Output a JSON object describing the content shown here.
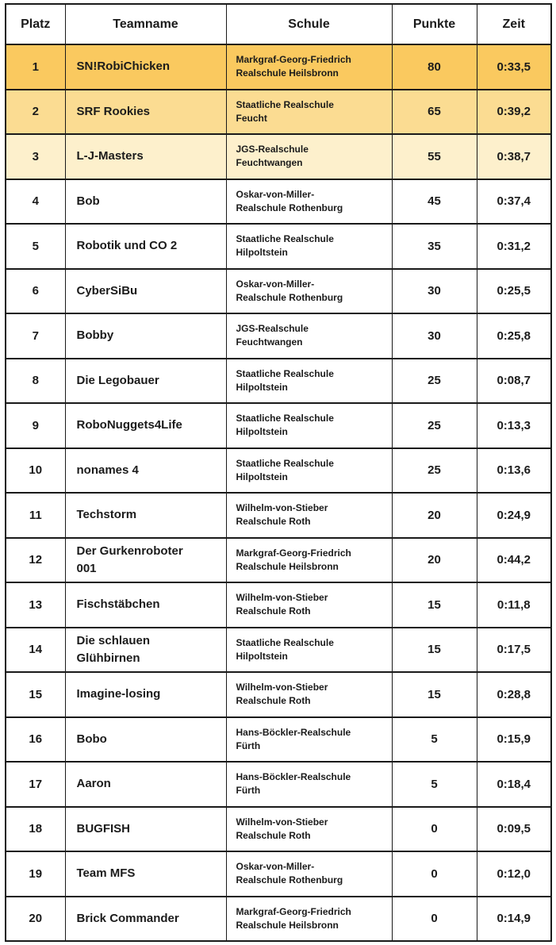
{
  "table": {
    "headers": [
      "Platz",
      "Teamname",
      "Schule",
      "Punkte",
      "Zeit"
    ],
    "rows": [
      {
        "platz": "1",
        "teamname": "SN!RobiChicken",
        "schule": "Markgraf-Georg-Friedrich\nRealschule Heilsbronn",
        "punkte": "80",
        "zeit": "0:33,5",
        "highlight": 1
      },
      {
        "platz": "2",
        "teamname": "SRF Rookies",
        "schule": "Staatliche Realschule\nFeucht",
        "punkte": "65",
        "zeit": "0:39,2",
        "highlight": 2
      },
      {
        "platz": "3",
        "teamname": "L-J-Masters",
        "schule": "JGS-Realschule\nFeuchtwangen",
        "punkte": "55",
        "zeit": "0:38,7",
        "highlight": 3
      },
      {
        "platz": "4",
        "teamname": "Bob",
        "schule": "Oskar-von-Miller-\nRealschule Rothenburg",
        "punkte": "45",
        "zeit": "0:37,4",
        "highlight": 0
      },
      {
        "platz": "5",
        "teamname": "Robotik und CO 2",
        "schule": "Staatliche Realschule\nHilpoltstein",
        "punkte": "35",
        "zeit": "0:31,2",
        "highlight": 0
      },
      {
        "platz": "6",
        "teamname": "CyberSiBu",
        "schule": "Oskar-von-Miller-\nRealschule Rothenburg",
        "punkte": "30",
        "zeit": "0:25,5",
        "highlight": 0
      },
      {
        "platz": "7",
        "teamname": "Bobby",
        "schule": "JGS-Realschule\nFeuchtwangen",
        "punkte": "30",
        "zeit": "0:25,8",
        "highlight": 0
      },
      {
        "platz": "8",
        "teamname": "Die Legobauer",
        "schule": "Staatliche Realschule\nHilpoltstein",
        "punkte": "25",
        "zeit": "0:08,7",
        "highlight": 0
      },
      {
        "platz": "9",
        "teamname": "RoboNuggets4Life",
        "schule": "Staatliche Realschule\nHilpoltstein",
        "punkte": "25",
        "zeit": "0:13,3",
        "highlight": 0
      },
      {
        "platz": "10",
        "teamname": "nonames 4",
        "schule": "Staatliche Realschule\nHilpoltstein",
        "punkte": "25",
        "zeit": "0:13,6",
        "highlight": 0
      },
      {
        "platz": "11",
        "teamname": "Techstorm",
        "schule": "Wilhelm-von-Stieber\nRealschule Roth",
        "punkte": "20",
        "zeit": "0:24,9",
        "highlight": 0
      },
      {
        "platz": "12",
        "teamname": "Der Gurkenroboter\n001",
        "schule": "Markgraf-Georg-Friedrich\nRealschule Heilsbronn",
        "punkte": "20",
        "zeit": "0:44,2",
        "highlight": 0
      },
      {
        "platz": "13",
        "teamname": "Fischstäbchen",
        "schule": "Wilhelm-von-Stieber\nRealschule Roth",
        "punkte": "15",
        "zeit": "0:11,8",
        "highlight": 0
      },
      {
        "platz": "14",
        "teamname": "Die schlauen\nGlühbirnen",
        "schule": "Staatliche Realschule\nHilpoltstein",
        "punkte": "15",
        "zeit": "0:17,5",
        "highlight": 0
      },
      {
        "platz": "15",
        "teamname": "Imagine-losing",
        "schule": "Wilhelm-von-Stieber\nRealschule Roth",
        "punkte": "15",
        "zeit": "0:28,8",
        "highlight": 0
      },
      {
        "platz": "16",
        "teamname": "Bobo",
        "schule": "Hans-Böckler-Realschule\nFürth",
        "punkte": "5",
        "zeit": "0:15,9",
        "highlight": 0
      },
      {
        "platz": "17",
        "teamname": "Aaron",
        "schule": "Hans-Böckler-Realschule\nFürth",
        "punkte": "5",
        "zeit": "0:18,4",
        "highlight": 0
      },
      {
        "platz": "18",
        "teamname": "BUGFISH",
        "schule": "Wilhelm-von-Stieber\nRealschule Roth",
        "punkte": "0",
        "zeit": "0:09,5",
        "highlight": 0
      },
      {
        "platz": "19",
        "teamname": "Team MFS",
        "schule": "Oskar-von-Miller-\nRealschule Rothenburg",
        "punkte": "0",
        "zeit": "0:12,0",
        "highlight": 0
      },
      {
        "platz": "20",
        "teamname": "Brick Commander",
        "schule": "Markgraf-Georg-Friedrich\nRealschule Heilsbronn",
        "punkte": "0",
        "zeit": "0:14,9",
        "highlight": 0
      }
    ]
  },
  "colors": {
    "row_highlight_rank1": "#FAC95F",
    "row_highlight_rank2": "#FBDC92",
    "row_highlight_rank3": "#FDF0CC",
    "row_default_bg": "#FFFFFF",
    "header_bg": "#FFFFFF",
    "border": "#1A1A1A",
    "text": "#1B1B1B"
  }
}
